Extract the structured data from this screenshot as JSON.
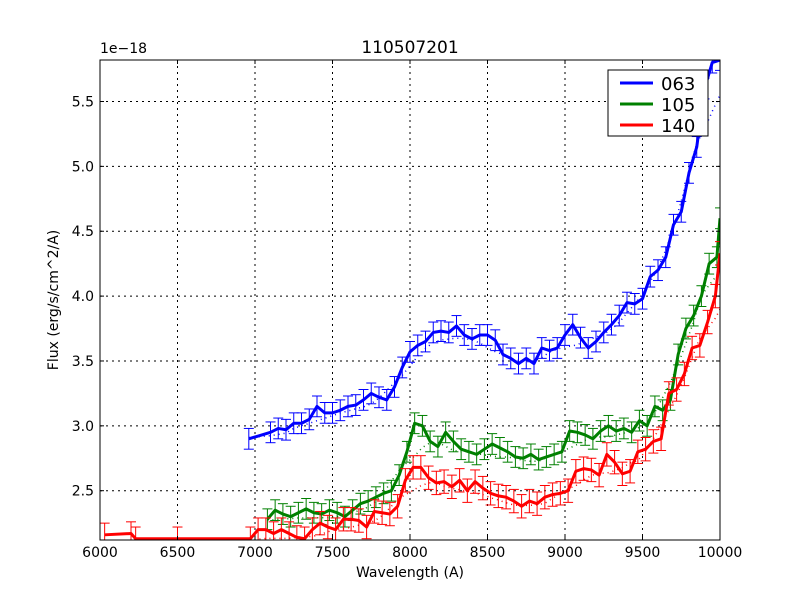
{
  "figure": {
    "title": "110507201",
    "xlabel": "Wavelength (A)",
    "ylabel": "Flux (erg/s/cm^2/A)",
    "offset_text": "1e−18"
  },
  "chart_data": {
    "type": "line",
    "title": "110507201",
    "xlabel": "Wavelength (A)",
    "ylabel": "Flux (erg/s/cm^2/A)",
    "y_scale_factor": "1e-18",
    "xlim": [
      6000,
      10000
    ],
    "ylim": [
      2.12,
      5.82
    ],
    "xticks": [
      6000,
      6500,
      7000,
      7500,
      8000,
      8500,
      9000,
      9500,
      10000
    ],
    "yticks": [
      2.5,
      3.0,
      3.5,
      4.0,
      4.5,
      5.0,
      5.5
    ],
    "xtick_labels": [
      "6000",
      "6500",
      "7000",
      "7500",
      "8000",
      "8500",
      "9000",
      "9500",
      "10000"
    ],
    "ytick_labels": [
      "2.5",
      "3.0",
      "3.5",
      "4.0",
      "4.5",
      "5.0",
      "5.5"
    ],
    "grid": true,
    "grid_style": "dotted",
    "legend": {
      "position": "upper right",
      "entries": [
        "063",
        "105",
        "140"
      ]
    },
    "series": [
      {
        "name": "063",
        "color": "#0000ff",
        "x": [
          6960,
          7100,
          7150,
          7200,
          7250,
          7300,
          7350,
          7400,
          7450,
          7500,
          7550,
          7600,
          7650,
          7700,
          7750,
          7800,
          7850,
          7900,
          7950,
          8000,
          8050,
          8100,
          8150,
          8200,
          8250,
          8300,
          8350,
          8400,
          8450,
          8500,
          8550,
          8600,
          8650,
          8700,
          8750,
          8800,
          8850,
          8900,
          8950,
          9000,
          9050,
          9100,
          9150,
          9200,
          9250,
          9300,
          9350,
          9400,
          9450,
          9500,
          9550,
          9600,
          9650,
          9700,
          9750,
          9800,
          9850,
          9900,
          9950,
          10000
        ],
        "y": [
          2.9,
          2.95,
          2.98,
          2.97,
          3.02,
          3.02,
          3.05,
          3.15,
          3.1,
          3.1,
          3.12,
          3.15,
          3.16,
          3.2,
          3.25,
          3.22,
          3.2,
          3.3,
          3.45,
          3.57,
          3.62,
          3.65,
          3.72,
          3.73,
          3.72,
          3.77,
          3.7,
          3.67,
          3.7,
          3.7,
          3.66,
          3.55,
          3.52,
          3.48,
          3.52,
          3.48,
          3.6,
          3.58,
          3.6,
          3.7,
          3.78,
          3.68,
          3.6,
          3.65,
          3.72,
          3.78,
          3.85,
          3.95,
          3.94,
          3.98,
          4.15,
          4.2,
          4.3,
          4.55,
          4.65,
          4.95,
          5.15,
          5.6,
          5.8,
          5.82
        ],
        "error": 0.08,
        "model_dotted": true
      },
      {
        "name": "105",
        "color": "#008000",
        "x": [
          7080,
          7130,
          7180,
          7230,
          7280,
          7330,
          7380,
          7430,
          7480,
          7530,
          7580,
          7630,
          7680,
          7730,
          7780,
          7830,
          7880,
          7930,
          7980,
          8030,
          8080,
          8130,
          8180,
          8230,
          8280,
          8330,
          8380,
          8430,
          8480,
          8530,
          8580,
          8630,
          8680,
          8730,
          8780,
          8830,
          8880,
          8930,
          8980,
          9030,
          9080,
          9130,
          9180,
          9230,
          9280,
          9330,
          9380,
          9430,
          9480,
          9530,
          9580,
          9630,
          9680,
          9730,
          9780,
          9830,
          9880,
          9930,
          9980,
          10000
        ],
        "y": [
          2.28,
          2.35,
          2.32,
          2.3,
          2.33,
          2.36,
          2.33,
          2.32,
          2.35,
          2.33,
          2.3,
          2.35,
          2.4,
          2.42,
          2.45,
          2.48,
          2.5,
          2.62,
          2.8,
          3.02,
          3.0,
          2.88,
          2.84,
          2.95,
          2.88,
          2.82,
          2.8,
          2.78,
          2.82,
          2.86,
          2.83,
          2.8,
          2.76,
          2.75,
          2.78,
          2.74,
          2.76,
          2.78,
          2.8,
          2.96,
          2.95,
          2.93,
          2.9,
          2.96,
          3.0,
          2.96,
          2.98,
          2.95,
          3.04,
          3.0,
          3.15,
          3.12,
          3.2,
          3.55,
          3.75,
          3.85,
          4.0,
          4.25,
          4.3,
          4.6
        ],
        "error": 0.08,
        "model_dotted": true
      },
      {
        "name": "140",
        "color": "#ff0000",
        "x": [
          6030,
          6200,
          6230,
          6500,
          6970,
          7020,
          7070,
          7120,
          7170,
          7220,
          7270,
          7320,
          7370,
          7420,
          7470,
          7520,
          7570,
          7620,
          7670,
          7720,
          7770,
          7820,
          7870,
          7920,
          7970,
          8020,
          8070,
          8120,
          8170,
          8220,
          8270,
          8320,
          8370,
          8420,
          8470,
          8520,
          8570,
          8620,
          8670,
          8720,
          8770,
          8820,
          8870,
          8920,
          8970,
          9020,
          9070,
          9120,
          9170,
          9220,
          9270,
          9320,
          9370,
          9420,
          9470,
          9520,
          9570,
          9620,
          9670,
          9720,
          9770,
          9820,
          9870,
          9920,
          9970,
          10000
        ],
        "y": [
          2.16,
          2.17,
          2.13,
          2.13,
          2.13,
          2.2,
          2.2,
          2.17,
          2.2,
          2.17,
          2.14,
          2.13,
          2.2,
          2.25,
          2.22,
          2.2,
          2.28,
          2.28,
          2.27,
          2.22,
          2.34,
          2.33,
          2.32,
          2.38,
          2.58,
          2.68,
          2.68,
          2.6,
          2.56,
          2.57,
          2.53,
          2.58,
          2.5,
          2.57,
          2.52,
          2.48,
          2.46,
          2.45,
          2.42,
          2.38,
          2.42,
          2.4,
          2.45,
          2.47,
          2.48,
          2.5,
          2.65,
          2.67,
          2.66,
          2.62,
          2.78,
          2.72,
          2.63,
          2.65,
          2.8,
          2.82,
          2.88,
          2.9,
          3.25,
          3.28,
          3.4,
          3.6,
          3.62,
          3.8,
          4.0,
          4.33
        ],
        "error": 0.09,
        "model_dotted": true
      }
    ]
  }
}
